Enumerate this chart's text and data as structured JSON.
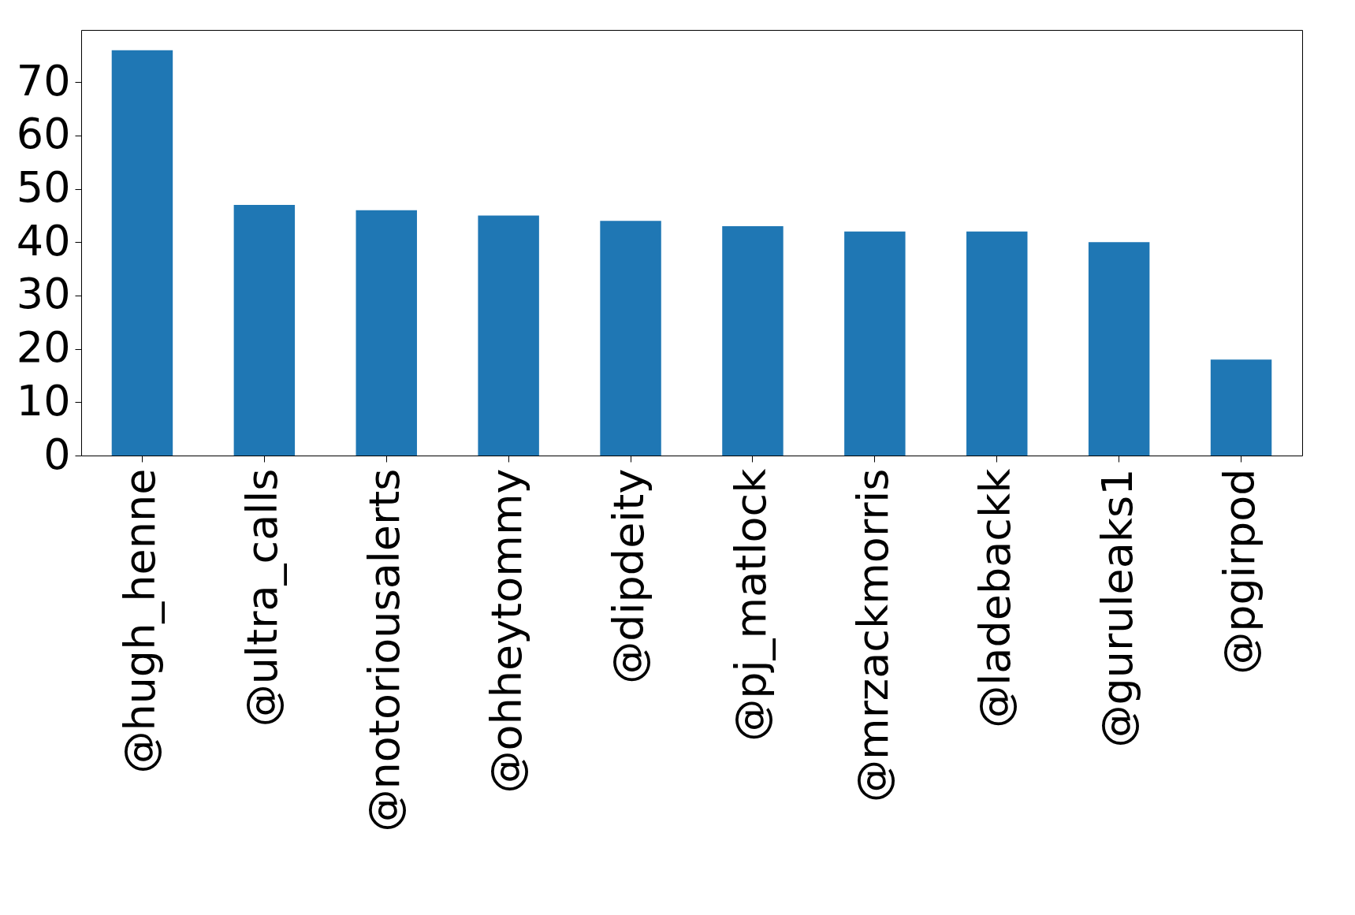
{
  "chart_data": {
    "type": "bar",
    "categories": [
      "@hugh_henne",
      "@ultra_calls",
      "@notoriousalerts",
      "@ohheytommy",
      "@dipdeity",
      "@pj_matlock",
      "@mrzackmorris",
      "@ladebackk",
      "@guruleaks1",
      "@pgirpod"
    ],
    "values": [
      76,
      47,
      46,
      45,
      44,
      43,
      42,
      42,
      40,
      18
    ],
    "color": "#1f77b4",
    "ylim": [
      0,
      79.8
    ],
    "yticks": [
      0,
      10,
      20,
      30,
      40,
      50,
      60,
      70
    ],
    "grid": false
  }
}
